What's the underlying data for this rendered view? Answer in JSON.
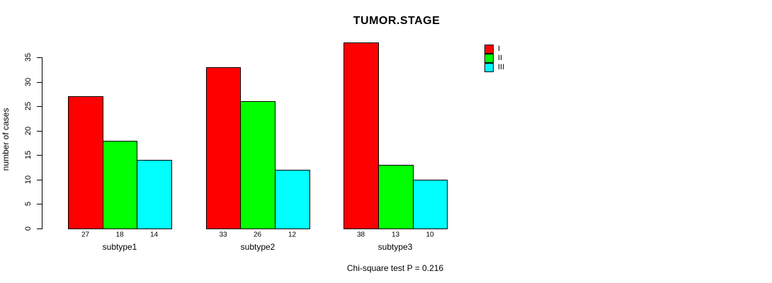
{
  "figure": {
    "background": "#ffffff",
    "axis_color": "#000000",
    "text_color": "#000000"
  },
  "chart_data": {
    "type": "bar",
    "title": "TUMOR.STAGE",
    "ylabel": "number of cases",
    "xlabel": "",
    "categories": [
      "subtype1",
      "subtype2",
      "subtype3"
    ],
    "series": [
      {
        "name": "I",
        "color": "#ff0000",
        "values": [
          27,
          33,
          38
        ]
      },
      {
        "name": "II",
        "color": "#00ff00",
        "values": [
          18,
          26,
          13
        ]
      },
      {
        "name": "III",
        "color": "#00ffff",
        "values": [
          14,
          12,
          10
        ]
      }
    ],
    "bar_value_labels_shown": true,
    "yticks": [
      0,
      5,
      10,
      15,
      20,
      25,
      30,
      35
    ],
    "ylim": [
      0,
      38
    ],
    "grid": false,
    "legend": {
      "position": "top-right",
      "entries": [
        "I",
        "II",
        "III"
      ]
    },
    "annotation": "Chi-square test P = 0.216"
  }
}
